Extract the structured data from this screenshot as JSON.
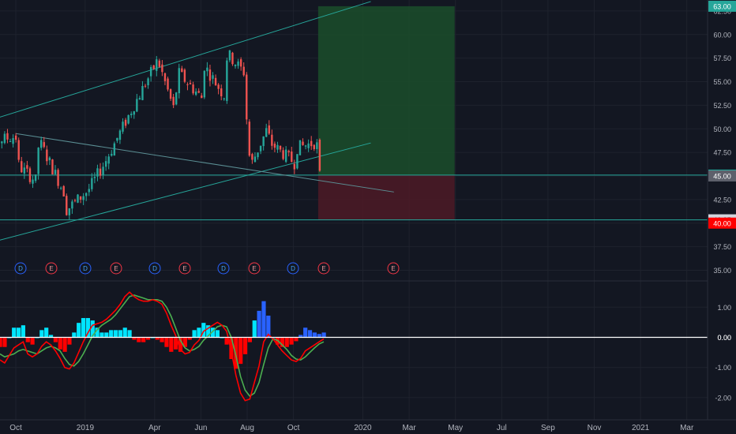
{
  "chart_data": [
    {
      "type": "candlestick",
      "title": "",
      "xlabel": "",
      "ylabel": "",
      "x_ticks": [
        "Oct",
        "2019",
        "Apr",
        "Jun",
        "Aug",
        "Oct",
        "2020",
        "Mar",
        "May",
        "Jul",
        "Sep",
        "Nov",
        "2021",
        "Mar"
      ],
      "y_ticks": [
        "35.00",
        "37.50",
        "40.00",
        "42.50",
        "45.00",
        "47.50",
        "50.00",
        "52.50",
        "55.00",
        "57.50",
        "60.00",
        "62.50"
      ],
      "ylim": [
        35,
        63
      ],
      "price_markers": [
        {
          "label": "63.00",
          "value": 63.0,
          "color": "#26a69a",
          "text_color": "#ffffff"
        },
        {
          "label": "45.09",
          "value": 45.09,
          "color": "#26a69a",
          "text_color": "#ffffff"
        },
        {
          "label": "45.00",
          "value": 45.0,
          "color": "#5d606b",
          "text_color": "#ffffff"
        },
        {
          "label": "40.35",
          "value": 40.35,
          "color": "#d1d4dc",
          "text_color": "#131722"
        },
        {
          "label": "40.00",
          "value": 40.0,
          "color": "#ff0000",
          "text_color": "#ffffff"
        }
      ],
      "events": [
        {
          "label": "D",
          "month": "Nov 2018",
          "color": "#2962ff"
        },
        {
          "label": "E",
          "month": "Dec 2018",
          "color": "#f23645"
        },
        {
          "label": "D",
          "month": "Jan 2019",
          "color": "#2962ff"
        },
        {
          "label": "E",
          "month": "Feb 2019",
          "color": "#f23645"
        },
        {
          "label": "D",
          "month": "Apr 2019",
          "color": "#2962ff"
        },
        {
          "label": "E",
          "month": "Apr 2019",
          "color": "#f23645"
        },
        {
          "label": "D",
          "month": "Jun 2019",
          "color": "#2962ff"
        },
        {
          "label": "E",
          "month": "Aug 2019",
          "color": "#f23645"
        },
        {
          "label": "D",
          "month": "Oct 2019",
          "color": "#2962ff"
        },
        {
          "label": "E",
          "month": "Nov 2019",
          "color": "#f23645"
        },
        {
          "label": "E",
          "month": "Feb 2020",
          "color": "#f23645"
        }
      ],
      "price_path": [
        {
          "t": "Sep 2018",
          "v": 48.2
        },
        {
          "t": "Oct 2018",
          "v": 49.2
        },
        {
          "t": "Oct 2018",
          "v": 46.0
        },
        {
          "t": "Nov 2018",
          "v": 44.5
        },
        {
          "t": "Nov 2018",
          "v": 48.8
        },
        {
          "t": "Dec 2018",
          "v": 43.0
        },
        {
          "t": "Dec 2018",
          "v": 47.5
        },
        {
          "t": "Dec 2018",
          "v": 41.0
        },
        {
          "t": "Jan 2019",
          "v": 43.5
        },
        {
          "t": "Feb 2019",
          "v": 46.5
        },
        {
          "t": "Mar 2019",
          "v": 52.0
        },
        {
          "t": "Apr 2019",
          "v": 57.3
        },
        {
          "t": "May 2019",
          "v": 51.8
        },
        {
          "t": "May 2019",
          "v": 56.0
        },
        {
          "t": "Jun 2019",
          "v": 53.0
        },
        {
          "t": "Jun 2019",
          "v": 57.8
        },
        {
          "t": "Jul 2019",
          "v": 53.5
        },
        {
          "t": "Jul 2019",
          "v": 58.0
        },
        {
          "t": "Aug 2019",
          "v": 56.0
        },
        {
          "t": "Aug 2019",
          "v": 50.0
        },
        {
          "t": "Aug 2019",
          "v": 46.0
        },
        {
          "t": "Sep 2019",
          "v": 50.0
        },
        {
          "t": "Sep 2019",
          "v": 48.5
        },
        {
          "t": "Oct 2019",
          "v": 46.2
        },
        {
          "t": "Oct 2019",
          "v": 47.8
        },
        {
          "t": "Nov 2019",
          "v": 48.6
        },
        {
          "t": "Nov 2019",
          "v": 45.0
        }
      ],
      "position": {
        "entry": 45.09,
        "target": 63.0,
        "stop": 40.35,
        "from": "Nov 2019",
        "to": "May 2020"
      },
      "trendlines": [
        {
          "name": "channel-upper",
          "from": {
            "t": "Sep 2018",
            "v": 51.0
          },
          "to": {
            "t": "Jan 2020",
            "v": 63.5
          }
        },
        {
          "name": "channel-lower",
          "from": {
            "t": "Sep 2018",
            "v": 38.0
          },
          "to": {
            "t": "Jan 2020",
            "v": 48.5
          }
        },
        {
          "name": "descending",
          "from": {
            "t": "Oct 2018",
            "v": 49.5
          },
          "to": {
            "t": "Feb 2020",
            "v": 43.3
          }
        }
      ]
    },
    {
      "type": "oscillator",
      "title": "",
      "y_ticks": [
        "1.00",
        "0.00",
        "-1.00",
        "-2.00"
      ],
      "ylim": [
        -2.5,
        1.65
      ],
      "zero_marker": {
        "label": "0.00",
        "color": "#ffffff"
      },
      "colors": {
        "fast": "#ff0000",
        "slow": "#4caf50",
        "hist_pos": "#00e5ff",
        "hist_pos_alt": "#2962ff",
        "hist_neg": "#ff0000"
      },
      "fast": [
        -0.75,
        -0.85,
        -0.6,
        -0.35,
        -0.25,
        -0.15,
        -0.55,
        -0.65,
        -0.55,
        -0.3,
        -0.15,
        -0.25,
        -0.45,
        -0.7,
        -1.0,
        -1.05,
        -0.85,
        -0.5,
        -0.15,
        0.15,
        0.4,
        0.45,
        0.5,
        0.6,
        0.75,
        0.9,
        1.1,
        1.35,
        1.5,
        1.35,
        1.25,
        1.2,
        1.2,
        1.25,
        1.2,
        1.1,
        0.8,
        0.4,
        0.05,
        -0.4,
        -0.55,
        -0.5,
        -0.25,
        -0.1,
        0.2,
        0.3,
        0.4,
        0.5,
        0.4,
        0.2,
        -0.45,
        -1.25,
        -1.85,
        -2.1,
        -2.05,
        -1.5,
        -0.95,
        -0.15,
        0.1,
        -0.05,
        -0.25,
        -0.45,
        -0.6,
        -0.75,
        -0.8,
        -0.7,
        -0.45,
        -0.35,
        -0.25,
        -0.15,
        -0.05
      ],
      "slow": [
        -0.55,
        -0.65,
        -0.6,
        -0.55,
        -0.45,
        -0.4,
        -0.45,
        -0.5,
        -0.55,
        -0.45,
        -0.35,
        -0.3,
        -0.35,
        -0.45,
        -0.7,
        -0.9,
        -0.95,
        -0.8,
        -0.55,
        -0.25,
        0.05,
        0.25,
        0.4,
        0.5,
        0.6,
        0.75,
        0.95,
        1.15,
        1.35,
        1.4,
        1.35,
        1.3,
        1.25,
        1.25,
        1.25,
        1.2,
        1.0,
        0.7,
        0.3,
        -0.1,
        -0.35,
        -0.45,
        -0.4,
        -0.3,
        -0.1,
        0.05,
        0.2,
        0.35,
        0.4,
        0.35,
        0.0,
        -0.6,
        -1.3,
        -1.75,
        -1.95,
        -1.85,
        -1.5,
        -0.9,
        -0.35,
        -0.05,
        -0.1,
        -0.25,
        -0.4,
        -0.6,
        -0.72,
        -0.75,
        -0.65,
        -0.5,
        -0.35,
        -0.22,
        -0.15
      ]
    }
  ]
}
